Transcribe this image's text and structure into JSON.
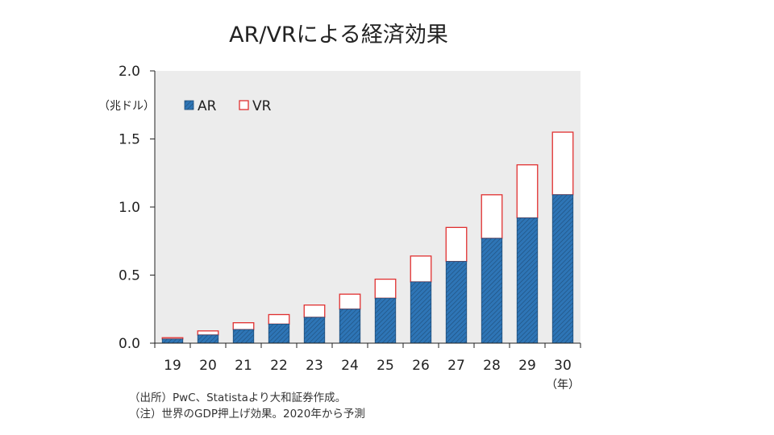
{
  "chart_data": {
    "type": "bar",
    "stacked": true,
    "title": "AR/VRによる経済効果",
    "ylabel": "（兆ドル）",
    "xlabel": "（年）",
    "ylim": [
      0,
      2.0
    ],
    "yticks": [
      "0.0",
      "0.5",
      "1.0",
      "1.5",
      "2.0"
    ],
    "ytick_values": [
      0,
      0.5,
      1.0,
      1.5,
      2.0
    ],
    "categories": [
      "19",
      "20",
      "21",
      "22",
      "23",
      "24",
      "25",
      "26",
      "27",
      "28",
      "29",
      "30"
    ],
    "series": [
      {
        "name": "AR",
        "values": [
          0.03,
          0.06,
          0.1,
          0.14,
          0.19,
          0.25,
          0.33,
          0.45,
          0.6,
          0.77,
          0.92,
          1.09
        ]
      },
      {
        "name": "VR",
        "values": [
          0.01,
          0.03,
          0.05,
          0.07,
          0.09,
          0.11,
          0.14,
          0.19,
          0.25,
          0.32,
          0.39,
          0.46
        ]
      }
    ],
    "legend_position": "top-left",
    "grid": false,
    "colors": {
      "AR": "#2e75b6",
      "VR": "#ffffff",
      "VR_edge": "#e03030",
      "plot_bg": "#ececec"
    }
  },
  "notes": [
    "（出所）PwC、Statistaより大和証券作成。",
    "（注）世界のGDP押上げ効果。2020年から予測"
  ]
}
